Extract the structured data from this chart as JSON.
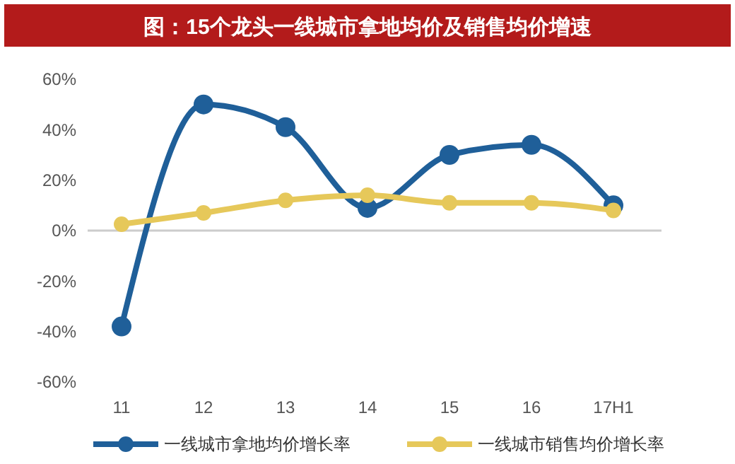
{
  "chart_data": {
    "type": "line",
    "title": "图：15个龙头一线城市拿地均价及销售均价增速",
    "categories": [
      "11",
      "12",
      "13",
      "14",
      "15",
      "16",
      "17H1"
    ],
    "series": [
      {
        "name": "一线城市拿地均价增长率",
        "color": "#1f5f99",
        "values": [
          -38,
          50,
          41,
          9,
          30,
          34,
          10
        ]
      },
      {
        "name": "一线城市销售均价增长率",
        "color": "#e6c85a",
        "values": [
          2.5,
          7,
          12,
          14,
          11,
          11,
          8
        ]
      }
    ],
    "ylim": [
      -60,
      60
    ],
    "yticks": [
      {
        "value": -60,
        "label": "-60%"
      },
      {
        "value": -40,
        "label": "-40%"
      },
      {
        "value": -20,
        "label": "-20%"
      },
      {
        "value": 0,
        "label": "0%"
      },
      {
        "value": 20,
        "label": "20%"
      },
      {
        "value": 40,
        "label": "40%"
      },
      {
        "value": 60,
        "label": "60%"
      }
    ],
    "ref_lines": [
      {
        "axis": "y",
        "value": 0,
        "color": "#cccccc"
      }
    ],
    "grid": false,
    "marker": "circle",
    "line_style": "solid",
    "legend": "bottom"
  }
}
